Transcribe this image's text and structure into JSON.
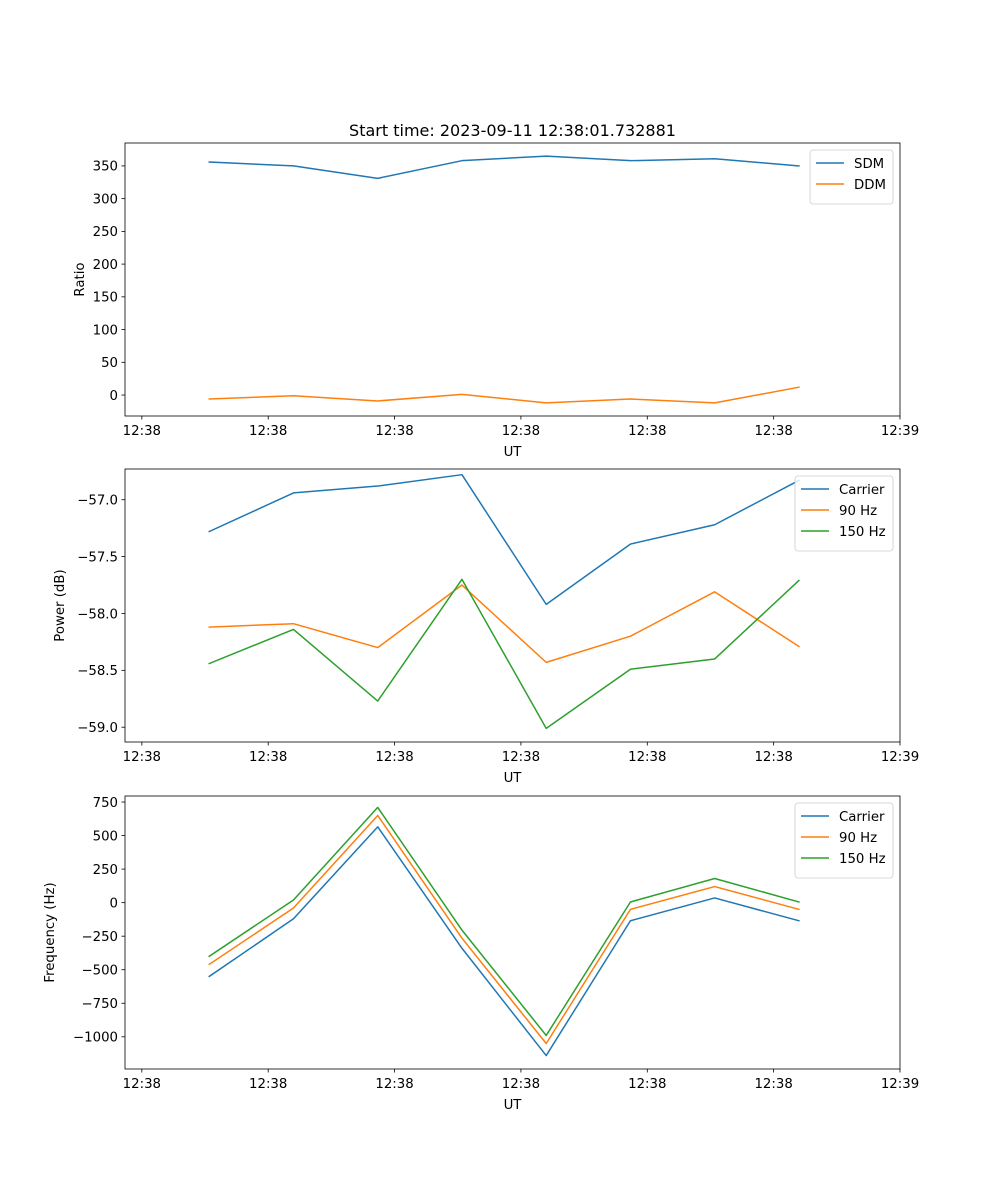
{
  "chart_data": [
    {
      "type": "line",
      "title": "Start time: 2023-09-11 12:38:01.732881",
      "xlabel": "UT",
      "ylabel": "Ratio",
      "xlim": [
        0,
        9.2
      ],
      "ylim": [
        -32,
        385
      ],
      "x_ticks": [
        0.2,
        1.7,
        3.2,
        4.7,
        6.2,
        7.7,
        9.2
      ],
      "x_tick_labels": [
        "12:38",
        "12:38",
        "12:38",
        "12:38",
        "12:38",
        "12:38",
        "12:39"
      ],
      "y_ticks": [
        0,
        50,
        100,
        150,
        200,
        250,
        300,
        350
      ],
      "y_tick_labels": [
        "0",
        "50",
        "100",
        "150",
        "200",
        "250",
        "300",
        "350"
      ],
      "x": [
        1,
        2,
        3,
        4,
        5,
        6,
        7,
        8
      ],
      "legend": "top-right",
      "series": [
        {
          "name": "SDM",
          "color": "#1f77b4",
          "values": [
            356,
            350,
            331,
            358,
            365,
            358,
            361,
            350
          ]
        },
        {
          "name": "DDM",
          "color": "#ff7f0e",
          "values": [
            -6,
            -1,
            -9,
            1,
            -12,
            -6,
            -12,
            12
          ]
        }
      ]
    },
    {
      "type": "line",
      "title": "",
      "xlabel": "UT",
      "ylabel": "Power (dB)",
      "xlim": [
        0,
        9.2
      ],
      "ylim": [
        -59.13,
        -56.73
      ],
      "x_ticks": [
        0.2,
        1.7,
        3.2,
        4.7,
        6.2,
        7.7,
        9.2
      ],
      "x_tick_labels": [
        "12:38",
        "12:38",
        "12:38",
        "12:38",
        "12:38",
        "12:38",
        "12:39"
      ],
      "y_ticks": [
        -59.0,
        -58.5,
        -58.0,
        -57.5,
        -57.0
      ],
      "y_tick_labels": [
        "−59.0",
        "−58.5",
        "−58.0",
        "−57.5",
        "−57.0"
      ],
      "x": [
        1,
        2,
        3,
        4,
        5,
        6,
        7,
        8
      ],
      "legend": "top-right",
      "series": [
        {
          "name": "Carrier",
          "color": "#1f77b4",
          "values": [
            -57.28,
            -56.94,
            -56.88,
            -56.78,
            -57.92,
            -57.39,
            -57.22,
            -56.83
          ]
        },
        {
          "name": "90 Hz",
          "color": "#ff7f0e",
          "values": [
            -58.12,
            -58.09,
            -58.3,
            -57.75,
            -58.43,
            -58.2,
            -57.81,
            -58.29
          ]
        },
        {
          "name": "150 Hz",
          "color": "#2ca02c",
          "values": [
            -58.44,
            -58.14,
            -58.77,
            -57.7,
            -59.01,
            -58.49,
            -58.4,
            -57.71
          ]
        }
      ]
    },
    {
      "type": "line",
      "title": "",
      "xlabel": "UT",
      "ylabel": "Frequency (Hz)",
      "xlim": [
        0,
        9.2
      ],
      "ylim": [
        -1240,
        795
      ],
      "x_ticks": [
        0.2,
        1.7,
        3.2,
        4.7,
        6.2,
        7.7,
        9.2
      ],
      "x_tick_labels": [
        "12:38",
        "12:38",
        "12:38",
        "12:38",
        "12:38",
        "12:38",
        "12:39"
      ],
      "y_ticks": [
        -1000,
        -750,
        -500,
        -250,
        0,
        250,
        500,
        750
      ],
      "y_tick_labels": [
        "−1000",
        "−750",
        "−500",
        "−250",
        "0",
        "250",
        "500",
        "750"
      ],
      "x": [
        1,
        2,
        3,
        4,
        5,
        6,
        7,
        8
      ],
      "legend": "top-right",
      "series": [
        {
          "name": "Carrier",
          "color": "#1f77b4",
          "values": [
            -550,
            -120,
            565,
            -340,
            -1140,
            -135,
            35,
            -135
          ]
        },
        {
          "name": "90 Hz",
          "color": "#ff7f0e",
          "values": [
            -460,
            -40,
            650,
            -265,
            -1050,
            -50,
            120,
            -50
          ]
        },
        {
          "name": "150 Hz",
          "color": "#2ca02c",
          "values": [
            -400,
            20,
            710,
            -205,
            -990,
            5,
            180,
            5
          ]
        }
      ]
    }
  ]
}
